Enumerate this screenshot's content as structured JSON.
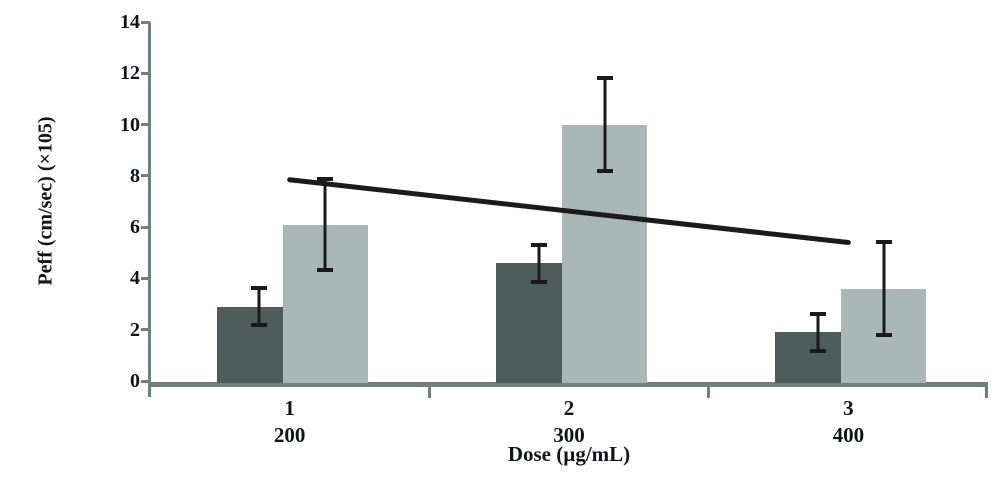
{
  "chart_data": {
    "type": "bar",
    "title": "",
    "ylabel": "Peff (cm/sec) (×105)",
    "xlabel": "Dose (µg/mL)",
    "ylim": [
      0,
      14
    ],
    "yticks": [
      0,
      2,
      4,
      6,
      8,
      10,
      12,
      14
    ],
    "grid": false,
    "legend": "none",
    "categories": [
      "1",
      "2",
      "3"
    ],
    "category_sublabels": [
      "200",
      "300",
      "400"
    ],
    "series": [
      {
        "name": "dark-gray-bars",
        "color": "#4e5c5a",
        "values": [
          2.9,
          4.6,
          1.9
        ],
        "errors": [
          0.8,
          0.8,
          0.8
        ]
      },
      {
        "name": "light-gray-bars",
        "color": "#a9b8b4",
        "values": [
          6.1,
          10.0,
          3.6
        ],
        "errors": [
          1.85,
          1.9,
          1.9
        ]
      }
    ],
    "trendline": {
      "applies_to": "light-gray-bars",
      "start_value": 7.85,
      "end_value": 5.4,
      "color": "#1b1b1b"
    },
    "error_bar_color": "#1b1b1b",
    "axis_color": "#6f807e",
    "text_color": "#13131c"
  }
}
